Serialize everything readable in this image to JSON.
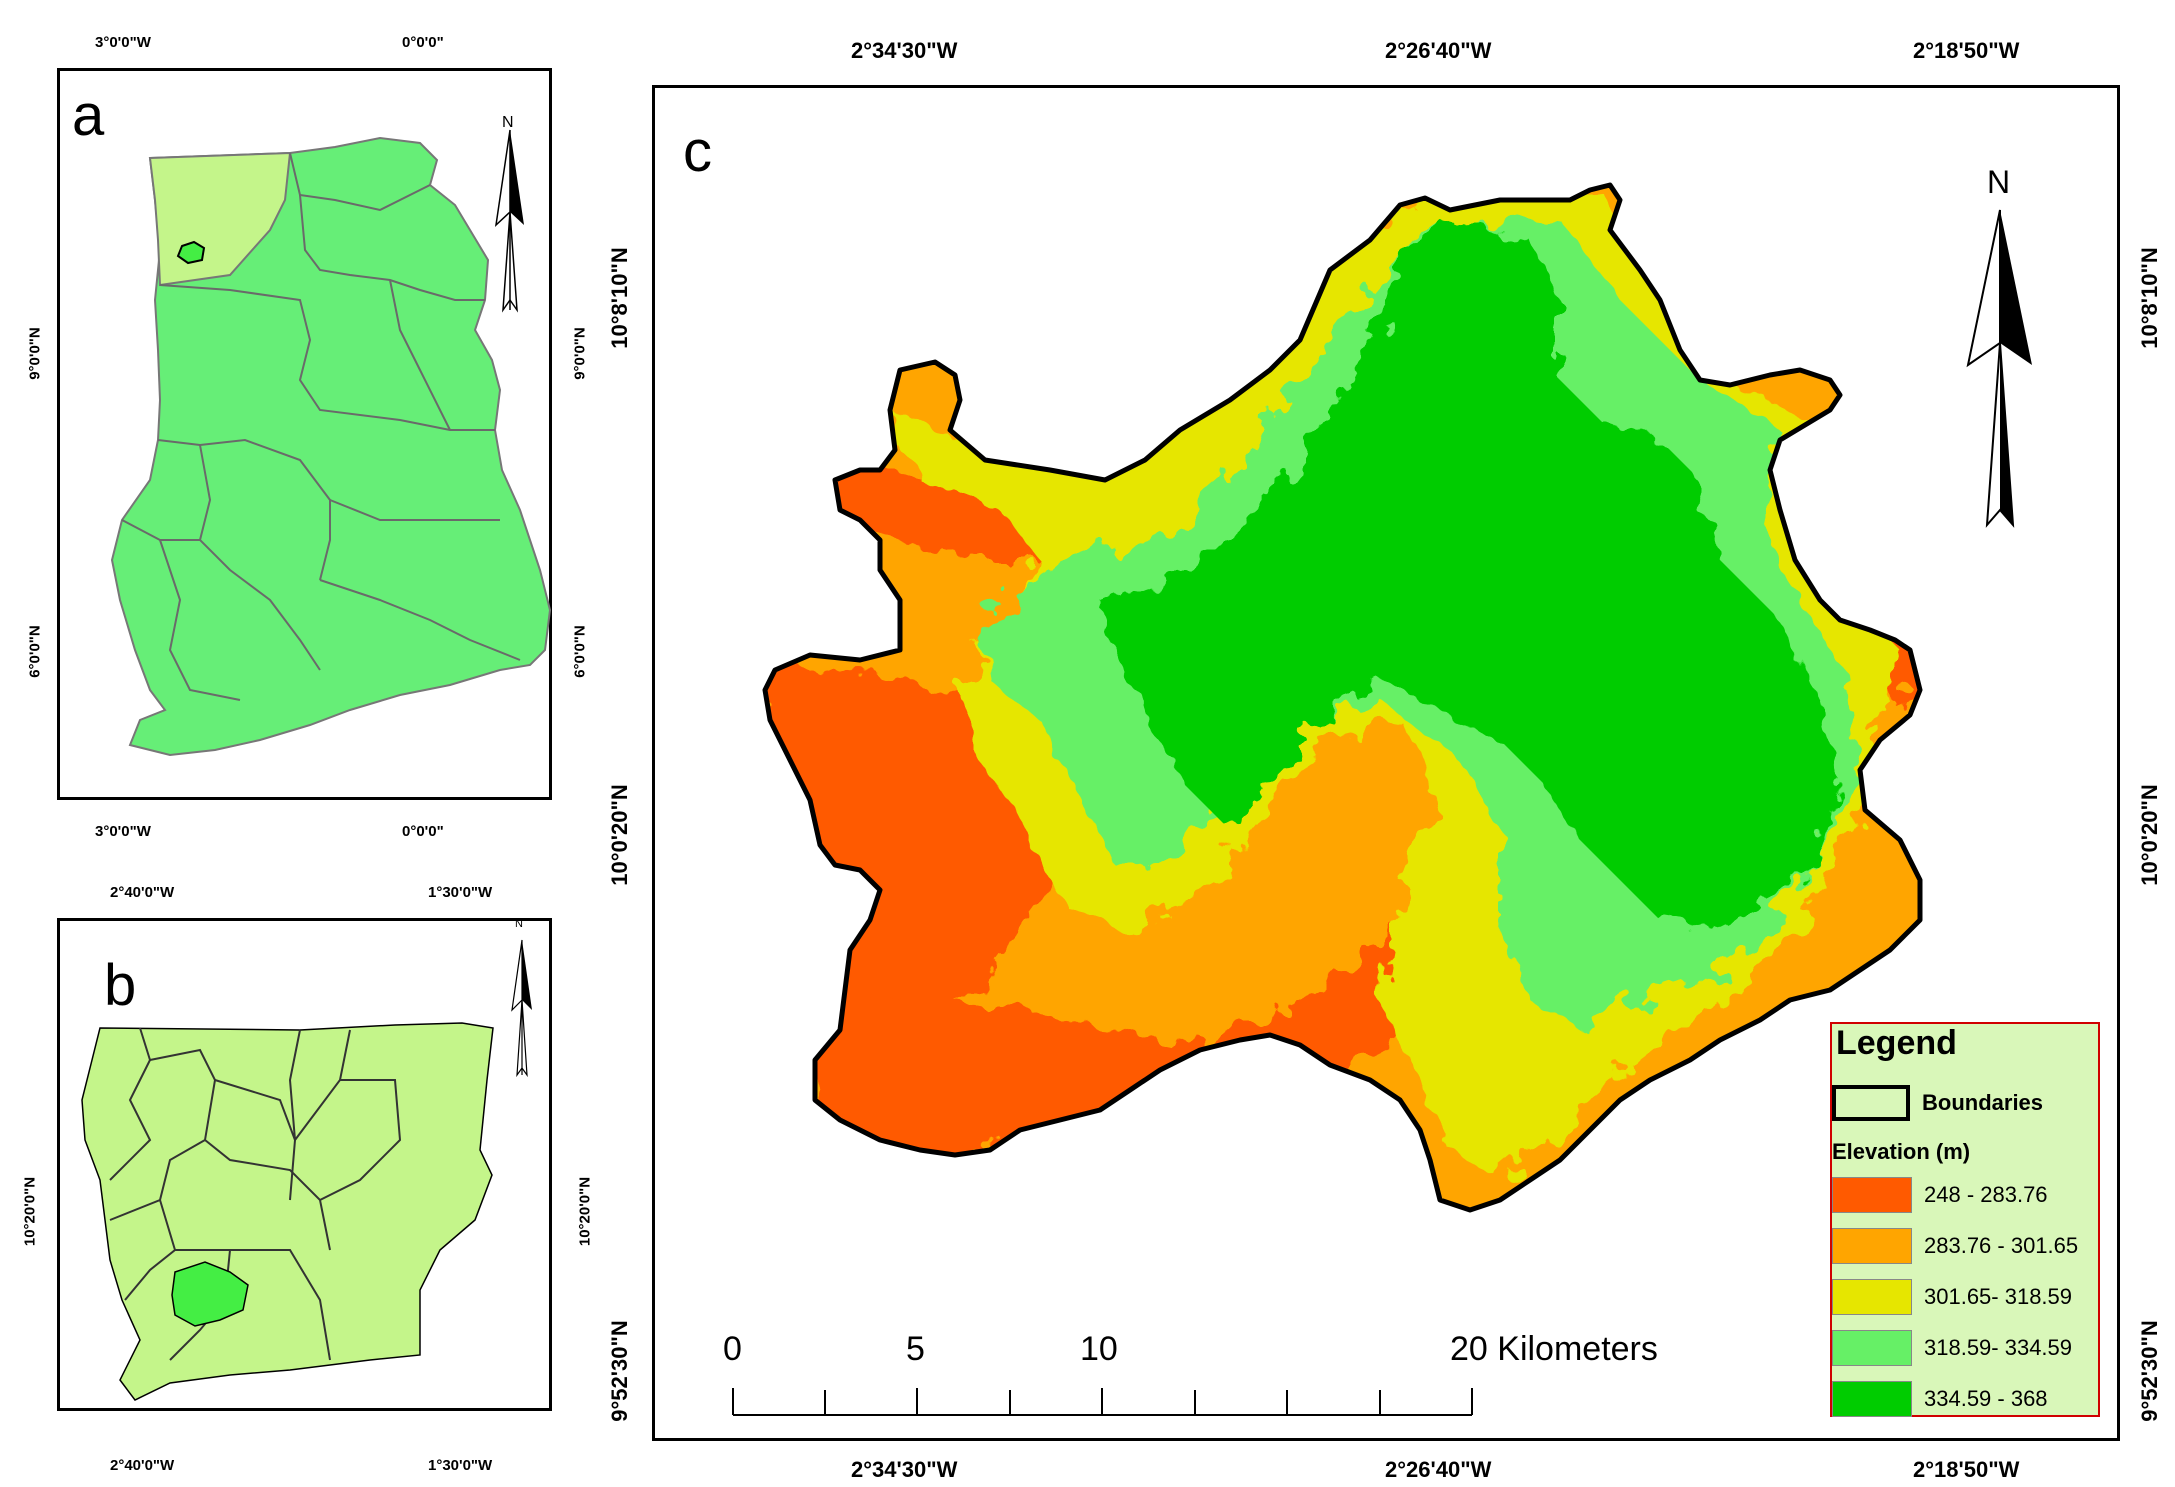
{
  "panel_a": {
    "letter": "a",
    "top_ticks": [
      "3°0'0\"W",
      "0°0'0\""
    ],
    "bottom_ticks": [
      "3°0'0\"W",
      "0°0'0\""
    ],
    "left_ticks": [
      "9°0'0\"N",
      "6°0'0\"N"
    ],
    "right_ticks": [
      "9°0'0\"N",
      "6°0'0\"N"
    ],
    "north_label": "N"
  },
  "panel_b": {
    "letter": "b",
    "top_ticks": [
      "2°40'0\"W",
      "1°30'0\"W"
    ],
    "bottom_ticks": [
      "2°40'0\"W",
      "1°30'0\"W"
    ],
    "left_ticks": [
      "10°20'0\"N"
    ],
    "right_ticks": [
      "10°20'0\"N"
    ],
    "north_label": "N"
  },
  "panel_c": {
    "letter": "c",
    "top_ticks": [
      "2°34'30\"W",
      "2°26'40\"W",
      "2°18'50\"W"
    ],
    "bottom_ticks": [
      "2°34'30\"W",
      "2°26'40\"W",
      "2°18'50\"W"
    ],
    "left_ticks": [
      "10°8'10\"N",
      "10°0'20\"N",
      "9°52'30\"N"
    ],
    "right_ticks": [
      "10°8'10\"N",
      "10°0'20\"N",
      "9°52'30\"N"
    ],
    "north_label": "N",
    "scale_bar": {
      "labels": [
        "0",
        "5",
        "10",
        "20 Kilometers"
      ]
    }
  },
  "legend": {
    "title": "Legend",
    "boundaries_label": "Boundaries",
    "elevation_title": "Elevation (m)",
    "classes": [
      {
        "label": "248 - 283.76",
        "color": "#ff5a00"
      },
      {
        "label": "283.76 - 301.65",
        "color": "#ffa500"
      },
      {
        "label": "301.65- 318.59",
        "color": "#e6e600"
      },
      {
        "label": "318.59- 334.59",
        "color": "#66f066"
      },
      {
        "label": "334.59 - 368",
        "color": "#00cc00"
      }
    ]
  },
  "colors": {
    "ghana_fill": "#66ee77",
    "ghana_highlight_region": "#c4f58a",
    "region_fill": "#c4f58a",
    "district_highlight": "#44ee44",
    "boundary": "#000000"
  }
}
